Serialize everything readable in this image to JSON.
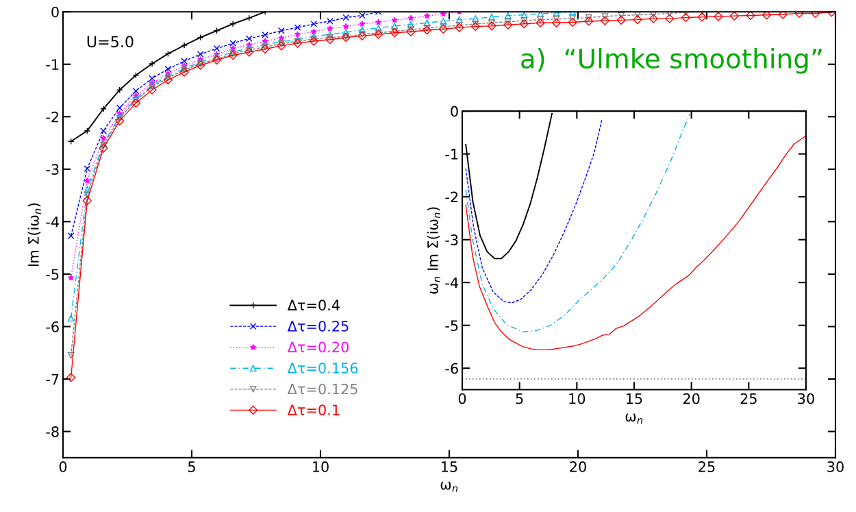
{
  "chart_data": [
    {
      "type": "line",
      "xlabel": "ω$_{n}$",
      "ylabel": "Im Σ(iω$_{n}$)",
      "xlim": [
        0,
        30
      ],
      "ylim": [
        -8.5,
        0
      ],
      "xticks": [
        0,
        5,
        10,
        15,
        20,
        25,
        30
      ],
      "yticks": [
        0,
        -1,
        -2,
        -3,
        -4,
        -5,
        -6,
        -7,
        -8
      ],
      "legend": "bottom left",
      "grid": false,
      "annotations": [
        "U=5.0",
        "a)  “Ulmke smoothing”"
      ],
      "series": [
        {
          "name": "Δτ=0.4",
          "color": "#000000",
          "marker": "plus",
          "line_style": "solid",
          "x": [
            0.31,
            0.94,
            1.57,
            2.2,
            2.83,
            3.46,
            4.08,
            4.71,
            5.34,
            5.97,
            6.6,
            7.23,
            7.85
          ],
          "values": [
            -2.47,
            -2.27,
            -1.85,
            -1.49,
            -1.21,
            -0.99,
            -0.8,
            -0.64,
            -0.49,
            -0.36,
            -0.23,
            -0.12,
            0
          ]
        },
        {
          "name": "Δτ=0.25",
          "color": "#0000ff",
          "marker": "x",
          "line_style": "dashed",
          "x": [
            0.31,
            0.94,
            1.57,
            2.2,
            2.83,
            3.46,
            4.08,
            4.71,
            5.34,
            5.97,
            6.6,
            7.23,
            7.85,
            8.48,
            9.11,
            9.74,
            10.37,
            10.99,
            11.62,
            12.25
          ],
          "values": [
            -4.27,
            -2.99,
            -2.27,
            -1.83,
            -1.51,
            -1.27,
            -1.09,
            -0.94,
            -0.81,
            -0.7,
            -0.6,
            -0.51,
            -0.44,
            -0.36,
            -0.3,
            -0.23,
            -0.18,
            -0.11,
            -0.07,
            0
          ]
        },
        {
          "name": "Δτ=0.20",
          "color": "#ff00ff",
          "marker": "star",
          "line_style": "dotted",
          "x": [
            0.31,
            0.94,
            1.57,
            2.2,
            2.83,
            3.46,
            4.08,
            4.71,
            5.34,
            5.97,
            6.6,
            7.23,
            7.85,
            8.48,
            9.11,
            9.74,
            10.37,
            10.99,
            11.62,
            12.25,
            12.88,
            13.51,
            14.14,
            14.77,
            15.39
          ],
          "values": [
            -5.07,
            -3.22,
            -2.41,
            -1.94,
            -1.6,
            -1.36,
            -1.18,
            -1.03,
            -0.91,
            -0.81,
            -0.7,
            -0.63,
            -0.56,
            -0.5,
            -0.43,
            -0.38,
            -0.32,
            -0.28,
            -0.23,
            -0.2,
            -0.16,
            -0.12,
            -0.08,
            -0.04,
            0
          ]
        },
        {
          "name": "Δτ=0.156",
          "color": "#00b0f0",
          "marker": "triangle",
          "line_style": "dashdot",
          "x": [
            0.31,
            0.94,
            1.57,
            2.2,
            2.83,
            3.46,
            4.08,
            4.71,
            5.34,
            5.97,
            6.6,
            7.23,
            7.85,
            8.48,
            9.11,
            9.74,
            10.37,
            10.99,
            11.62,
            12.25,
            12.88,
            13.51,
            14.14,
            14.77,
            15.39,
            16.02,
            16.65,
            17.28,
            17.91,
            18.54,
            19.16,
            19.79
          ],
          "values": [
            -5.84,
            -3.39,
            -2.51,
            -2.0,
            -1.66,
            -1.4,
            -1.23,
            -1.08,
            -0.96,
            -0.86,
            -0.77,
            -0.69,
            -0.63,
            -0.57,
            -0.53,
            -0.47,
            -0.43,
            -0.39,
            -0.34,
            -0.31,
            -0.27,
            -0.24,
            -0.21,
            -0.18,
            -0.15,
            -0.13,
            -0.1,
            -0.07,
            -0.06,
            -0.04,
            -0.02,
            0
          ]
        },
        {
          "name": "Δτ=0.125",
          "color": "#808080",
          "marker": "triangle_down",
          "line_style": "dashed",
          "x": [
            0.31,
            0.94,
            1.57,
            2.2,
            2.83,
            3.46,
            4.08,
            4.71,
            5.34,
            5.97,
            6.6,
            7.23,
            7.85,
            8.48,
            9.11,
            9.74,
            10.37,
            10.99,
            11.62,
            12.25,
            12.88,
            13.51,
            14.14,
            14.77,
            15.39,
            16.02,
            16.65,
            17.28,
            17.91,
            18.54,
            19.16,
            19.79,
            20.42,
            21.05,
            21.68,
            22.31,
            22.93,
            23.56,
            24.19,
            24.82
          ],
          "values": [
            -6.55,
            -3.49,
            -2.54,
            -2.03,
            -1.69,
            -1.43,
            -1.26,
            -1.11,
            -0.99,
            -0.9,
            -0.8,
            -0.73,
            -0.67,
            -0.61,
            -0.56,
            -0.52,
            -0.49,
            -0.47,
            -0.43,
            -0.4,
            -0.37,
            -0.34,
            -0.31,
            -0.28,
            -0.26,
            -0.23,
            -0.21,
            -0.19,
            -0.17,
            -0.15,
            -0.14,
            -0.13,
            -0.11,
            -0.09,
            -0.07,
            -0.06,
            -0.05,
            -0.03,
            -0.01,
            0
          ]
        },
        {
          "name": "Δτ=0.1",
          "color": "#ff0000",
          "marker": "diamond",
          "line_style": "solid",
          "x": [
            0.31,
            0.94,
            1.57,
            2.2,
            2.83,
            3.46,
            4.08,
            4.71,
            5.34,
            5.97,
            6.6,
            7.23,
            7.85,
            8.48,
            9.11,
            9.74,
            10.37,
            10.99,
            11.62,
            12.25,
            12.88,
            13.51,
            14.14,
            14.77,
            15.39,
            16.02,
            16.65,
            17.28,
            17.91,
            18.54,
            19.16,
            19.79,
            20.42,
            21.05,
            21.68,
            22.31,
            22.93,
            23.56,
            24.19,
            24.82,
            25.45,
            26.07,
            26.7,
            27.33,
            27.96,
            28.59,
            29.22,
            29.85
          ],
          "values": [
            -6.97,
            -3.6,
            -2.6,
            -2.08,
            -1.74,
            -1.49,
            -1.3,
            -1.15,
            -1.02,
            -0.92,
            -0.83,
            -0.77,
            -0.71,
            -0.65,
            -0.6,
            -0.56,
            -0.53,
            -0.49,
            -0.46,
            -0.43,
            -0.4,
            -0.38,
            -0.35,
            -0.33,
            -0.3,
            -0.28,
            -0.27,
            -0.25,
            -0.23,
            -0.21,
            -0.21,
            -0.2,
            -0.18,
            -0.17,
            -0.16,
            -0.15,
            -0.13,
            -0.13,
            -0.11,
            -0.1,
            -0.09,
            -0.08,
            -0.07,
            -0.06,
            -0.05,
            -0.03,
            -0.03,
            -0.01
          ]
        }
      ]
    },
    {
      "type": "line",
      "xlabel": "ω$_{n}$",
      "ylabel": "ω$_{n}$ Im Σ(iω$_{n}$)",
      "xlim": [
        0,
        30
      ],
      "ylim": [
        -6.5,
        0
      ],
      "xticks": [
        0,
        5,
        10,
        15,
        20,
        25,
        30
      ],
      "yticks": [
        0,
        -1,
        -2,
        -3,
        -4,
        -5,
        -6
      ],
      "legend": false,
      "grid": false,
      "ref_lines": [
        {
          "axis": "y",
          "value": -6.25,
          "color": "#808080",
          "line_style": "dotted"
        }
      ],
      "series": [
        {
          "color": "#000000",
          "line_style": "solid",
          "x": [
            0.31,
            0.93,
            1.55,
            2.17,
            2.82,
            3.41,
            4.06,
            4.68,
            5.32,
            5.94,
            6.56,
            7.18,
            7.83
          ],
          "values": [
            -0.78,
            -2.12,
            -2.9,
            -3.28,
            -3.44,
            -3.44,
            -3.28,
            -3.03,
            -2.64,
            -2.16,
            -1.55,
            -0.85,
            -0.06
          ]
        },
        {
          "color": "#0000ff",
          "line_style": "dashed",
          "x": [
            0.31,
            0.98,
            1.74,
            2.7,
            3.65,
            4.37,
            5.08,
            6.04,
            7.0,
            7.95,
            8.9,
            9.86,
            10.81,
            11.53,
            12.2
          ],
          "values": [
            -1.34,
            -2.69,
            -3.65,
            -4.22,
            -4.45,
            -4.47,
            -4.4,
            -4.16,
            -3.81,
            -3.36,
            -2.82,
            -2.21,
            -1.52,
            -0.96,
            -0.18
          ]
        },
        {
          "color": "#00b0f0",
          "line_style": "dashdot",
          "x": [
            0.31,
            0.91,
            1.74,
            2.7,
            3.89,
            5.32,
            6.52,
            7.71,
            8.9,
            10.33,
            12.24,
            13.44,
            14.63,
            15.82,
            17.02,
            18.21,
            19.16,
            19.88
          ],
          "values": [
            -1.84,
            -3.01,
            -4.03,
            -4.61,
            -4.99,
            -5.15,
            -5.12,
            -5.0,
            -4.77,
            -4.38,
            -3.93,
            -3.58,
            -3.07,
            -2.5,
            -1.86,
            -1.15,
            -0.51,
            -0.06
          ]
        },
        {
          "color": "#ff0000",
          "line_style": "solid",
          "x": [
            0.31,
            0.91,
            1.5,
            2.22,
            2.82,
            3.41,
            4.06,
            4.73,
            5.32,
            6.04,
            6.63,
            7.23,
            7.83,
            8.54,
            9.74,
            10.33,
            11.05,
            11.65,
            12.24,
            12.84,
            13.44,
            14.1,
            15.35,
            16.54,
            17.97,
            18.69,
            19.76,
            20.48,
            21.07,
            21.79,
            22.98,
            24.18,
            25.37,
            26.56,
            27.52,
            28.23,
            28.95,
            29.98
          ],
          "values": [
            -2.19,
            -3.39,
            -4.09,
            -4.57,
            -4.93,
            -5.15,
            -5.32,
            -5.42,
            -5.5,
            -5.55,
            -5.57,
            -5.57,
            -5.56,
            -5.53,
            -5.48,
            -5.44,
            -5.37,
            -5.31,
            -5.23,
            -5.21,
            -5.07,
            -5.01,
            -4.8,
            -4.54,
            -4.19,
            -4.03,
            -3.84,
            -3.63,
            -3.49,
            -3.29,
            -2.94,
            -2.56,
            -2.11,
            -1.66,
            -1.31,
            -1.02,
            -0.77,
            -0.58
          ]
        }
      ]
    }
  ]
}
